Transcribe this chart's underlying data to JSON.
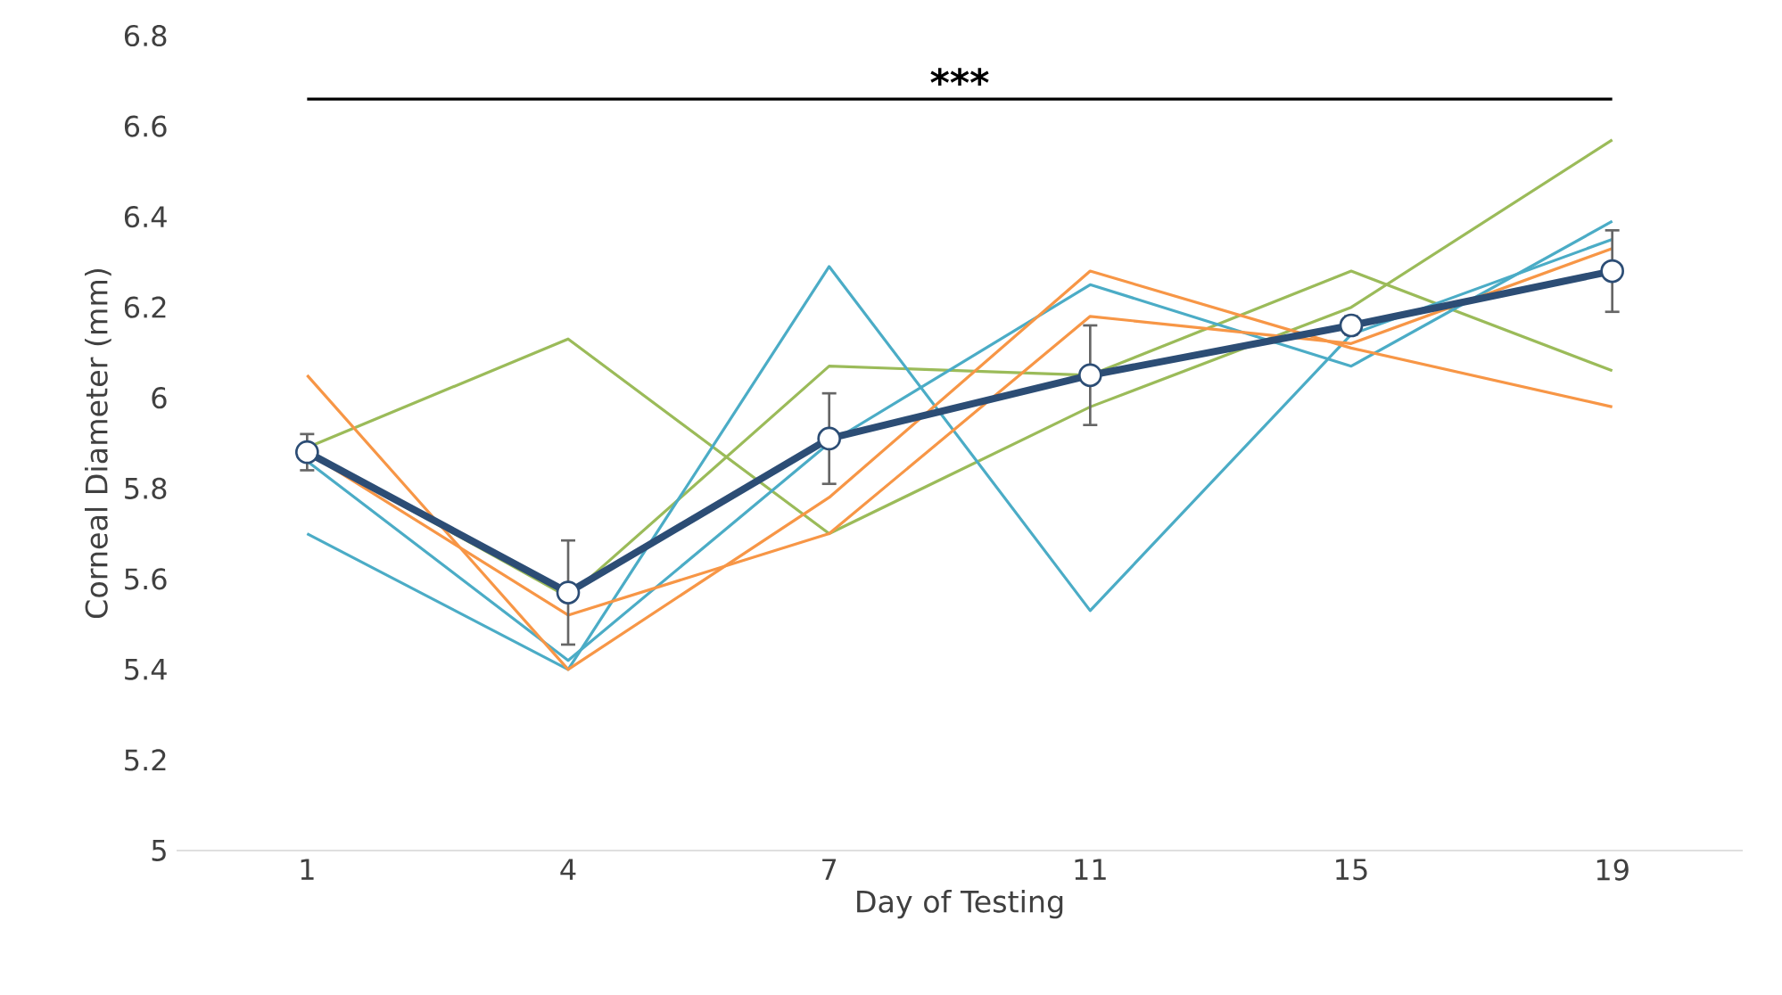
{
  "chart_data": {
    "type": "line",
    "xlabel": "Day of Testing",
    "ylabel": "Corneal Diameter (mm)",
    "categories": [
      "1",
      "4",
      "7",
      "11",
      "15",
      "19"
    ],
    "series": [
      {
        "color": "#9bbb59",
        "values": [
          5.89,
          6.13,
          5.7,
          5.98,
          6.2,
          6.57
        ]
      },
      {
        "color": "#9bbb59",
        "values": [
          5.88,
          5.56,
          6.07,
          6.05,
          6.28,
          6.06
        ]
      },
      {
        "color": "#4bacc6",
        "values": [
          5.7,
          5.4,
          6.29,
          5.53,
          6.14,
          6.35
        ]
      },
      {
        "color": "#4bacc6",
        "values": [
          5.86,
          5.42,
          5.9,
          6.25,
          6.07,
          6.39
        ]
      },
      {
        "color": "#f79646",
        "values": [
          6.05,
          5.4,
          5.78,
          6.28,
          6.11,
          5.98
        ]
      },
      {
        "color": "#f79646",
        "values": [
          5.88,
          5.52,
          5.7,
          6.18,
          6.12,
          6.33
        ]
      },
      {
        "color": "#2c4d75",
        "marker": "circle",
        "values": [
          5.88,
          5.57,
          5.91,
          6.05,
          6.16,
          6.28
        ],
        "errors": [
          0.04,
          0.115,
          0.1,
          0.11,
          0.02,
          0.09
        ]
      }
    ],
    "ylim": [
      5,
      6.8
    ],
    "yticks": [
      5,
      5.2,
      5.4,
      5.6,
      5.8,
      6,
      6.2,
      6.4,
      6.6,
      6.8
    ],
    "ref_lines": [
      {
        "axis": "y",
        "value": 6.66,
        "label": "***",
        "color": "#000000"
      }
    ],
    "grid": false
  }
}
